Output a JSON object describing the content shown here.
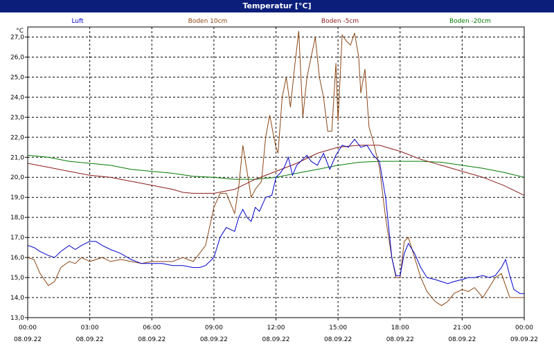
{
  "window": {
    "title": "Temperatur [°C]"
  },
  "colors": {
    "luft": "#0000cc",
    "boden10": "#8b4513",
    "bodenm5": "#8b1a1a",
    "bodenm20": "#007a00",
    "title_bg": "#0a1e7a"
  },
  "chart_data": {
    "type": "line",
    "title": "Temperatur [°C]",
    "ylabel": "°C",
    "ylim": [
      13.0,
      27.5
    ],
    "yticks": [
      "13,0",
      "14,0",
      "15,0",
      "16,0",
      "17,0",
      "18,0",
      "19,0",
      "20,0",
      "21,0",
      "22,0",
      "23,0",
      "24,0",
      "25,0",
      "26,0",
      "27,0"
    ],
    "xlim": [
      0,
      24
    ],
    "xticks": [
      {
        "x": 0,
        "time": "00:00",
        "date": "08.09.22"
      },
      {
        "x": 3,
        "time": "03:00",
        "date": "08.09.22"
      },
      {
        "x": 6,
        "time": "06:00",
        "date": "08.09.22"
      },
      {
        "x": 9,
        "time": "09:00",
        "date": "08.09.22"
      },
      {
        "x": 12,
        "time": "12:00",
        "date": "08.09.22"
      },
      {
        "x": 15,
        "time": "15:00",
        "date": "08.09.22"
      },
      {
        "x": 18,
        "time": "18:00",
        "date": "08.09.22"
      },
      {
        "x": 21,
        "time": "21:00",
        "date": "08.09.22"
      },
      {
        "x": 24,
        "time": "00:00",
        "date": "09.09.22"
      }
    ],
    "grid": true,
    "legend_position": "top",
    "series": [
      {
        "name": "Luft",
        "color_key": "luft",
        "points": [
          [
            0,
            16.6
          ],
          [
            0.3,
            16.5
          ],
          [
            0.6,
            16.3
          ],
          [
            1,
            16.1
          ],
          [
            1.3,
            16.0
          ],
          [
            1.6,
            16.3
          ],
          [
            2,
            16.6
          ],
          [
            2.3,
            16.4
          ],
          [
            2.6,
            16.6
          ],
          [
            3,
            16.8
          ],
          [
            3.3,
            16.8
          ],
          [
            3.6,
            16.6
          ],
          [
            4,
            16.4
          ],
          [
            4.5,
            16.2
          ],
          [
            5,
            15.9
          ],
          [
            5.5,
            15.7
          ],
          [
            6,
            15.7
          ],
          [
            6.5,
            15.7
          ],
          [
            7,
            15.6
          ],
          [
            7.5,
            15.6
          ],
          [
            8,
            15.5
          ],
          [
            8.3,
            15.5
          ],
          [
            8.6,
            15.6
          ],
          [
            9,
            16.0
          ],
          [
            9.3,
            17.0
          ],
          [
            9.6,
            17.5
          ],
          [
            10,
            17.3
          ],
          [
            10.2,
            18.0
          ],
          [
            10.4,
            18.4
          ],
          [
            10.6,
            18.0
          ],
          [
            10.8,
            17.8
          ],
          [
            11,
            18.5
          ],
          [
            11.2,
            18.3
          ],
          [
            11.5,
            19.0
          ],
          [
            11.8,
            19.1
          ],
          [
            12,
            20.0
          ],
          [
            12.2,
            20.2
          ],
          [
            12.4,
            20.5
          ],
          [
            12.6,
            21.0
          ],
          [
            12.8,
            20.1
          ],
          [
            13,
            20.6
          ],
          [
            13.3,
            20.9
          ],
          [
            13.5,
            21.1
          ],
          [
            13.7,
            20.8
          ],
          [
            14,
            20.6
          ],
          [
            14.3,
            21.2
          ],
          [
            14.6,
            20.4
          ],
          [
            14.9,
            21.1
          ],
          [
            15.2,
            21.6
          ],
          [
            15.5,
            21.5
          ],
          [
            15.8,
            21.9
          ],
          [
            16.1,
            21.5
          ],
          [
            16.4,
            21.6
          ],
          [
            16.7,
            21.1
          ],
          [
            17,
            20.8
          ],
          [
            17.3,
            19.0
          ],
          [
            17.6,
            16.0
          ],
          [
            17.8,
            15.1
          ],
          [
            18,
            15.1
          ],
          [
            18.2,
            16.2
          ],
          [
            18.4,
            16.7
          ],
          [
            18.7,
            16.2
          ],
          [
            19,
            15.5
          ],
          [
            19.3,
            15.0
          ],
          [
            19.7,
            14.9
          ],
          [
            20,
            14.8
          ],
          [
            20.3,
            14.7
          ],
          [
            20.6,
            14.8
          ],
          [
            21,
            14.9
          ],
          [
            21.3,
            15.0
          ],
          [
            21.6,
            15.0
          ],
          [
            22,
            15.1
          ],
          [
            22.3,
            15.0
          ],
          [
            22.6,
            15.1
          ],
          [
            22.9,
            15.5
          ],
          [
            23.1,
            15.9
          ],
          [
            23.3,
            15.1
          ],
          [
            23.5,
            14.4
          ],
          [
            23.8,
            14.2
          ],
          [
            24,
            14.2
          ]
        ]
      },
      {
        "name": "Boden 10cm",
        "color_key": "boden10",
        "points": [
          [
            0,
            16.0
          ],
          [
            0.3,
            15.9
          ],
          [
            0.6,
            15.2
          ],
          [
            1,
            14.6
          ],
          [
            1.3,
            14.8
          ],
          [
            1.6,
            15.5
          ],
          [
            2,
            15.8
          ],
          [
            2.3,
            15.7
          ],
          [
            2.6,
            16.0
          ],
          [
            3,
            15.8
          ],
          [
            3.3,
            15.9
          ],
          [
            3.6,
            16.0
          ],
          [
            4,
            15.8
          ],
          [
            4.5,
            15.9
          ],
          [
            5,
            15.8
          ],
          [
            5.5,
            15.7
          ],
          [
            6,
            15.8
          ],
          [
            6.5,
            15.8
          ],
          [
            7,
            15.8
          ],
          [
            7.5,
            16.0
          ],
          [
            8,
            15.8
          ],
          [
            8.3,
            16.2
          ],
          [
            8.6,
            16.6
          ],
          [
            9,
            18.5
          ],
          [
            9.3,
            19.2
          ],
          [
            9.6,
            19.2
          ],
          [
            10,
            18.2
          ],
          [
            10.2,
            19.5
          ],
          [
            10.4,
            21.6
          ],
          [
            10.6,
            20.3
          ],
          [
            10.8,
            19.0
          ],
          [
            11,
            19.4
          ],
          [
            11.3,
            19.8
          ],
          [
            11.5,
            22.0
          ],
          [
            11.7,
            23.1
          ],
          [
            11.9,
            22.0
          ],
          [
            12,
            21.5
          ],
          [
            12.1,
            21.2
          ],
          [
            12.3,
            24.0
          ],
          [
            12.5,
            25.0
          ],
          [
            12.7,
            23.5
          ],
          [
            12.9,
            25.5
          ],
          [
            13.1,
            27.3
          ],
          [
            13.3,
            23.0
          ],
          [
            13.5,
            25.0
          ],
          [
            13.7,
            26.0
          ],
          [
            13.9,
            27.0
          ],
          [
            14.1,
            25.0
          ],
          [
            14.3,
            24.0
          ],
          [
            14.5,
            22.3
          ],
          [
            14.7,
            22.3
          ],
          [
            14.9,
            25.7
          ],
          [
            15.0,
            22.8
          ],
          [
            15.2,
            27.1
          ],
          [
            15.4,
            26.8
          ],
          [
            15.6,
            26.6
          ],
          [
            15.8,
            27.2
          ],
          [
            16.0,
            26.0
          ],
          [
            16.1,
            24.2
          ],
          [
            16.3,
            25.4
          ],
          [
            16.5,
            22.5
          ],
          [
            16.7,
            21.8
          ],
          [
            17,
            20.5
          ],
          [
            17.3,
            18.0
          ],
          [
            17.6,
            16.0
          ],
          [
            17.8,
            15.0
          ],
          [
            18,
            15.0
          ],
          [
            18.2,
            16.8
          ],
          [
            18.4,
            17.0
          ],
          [
            18.7,
            16.0
          ],
          [
            19,
            15.0
          ],
          [
            19.3,
            14.3
          ],
          [
            19.7,
            13.8
          ],
          [
            20,
            13.6
          ],
          [
            20.3,
            13.8
          ],
          [
            20.6,
            14.2
          ],
          [
            21,
            14.4
          ],
          [
            21.3,
            14.3
          ],
          [
            21.6,
            14.5
          ],
          [
            22,
            14.0
          ],
          [
            22.3,
            14.5
          ],
          [
            22.6,
            15.0
          ],
          [
            22.9,
            15.2
          ],
          [
            23.1,
            14.6
          ],
          [
            23.3,
            14.0
          ],
          [
            23.6,
            14.0
          ],
          [
            24,
            14.0
          ]
        ]
      },
      {
        "name": "Boden -5cm",
        "color_key": "bodenm5",
        "points": [
          [
            0,
            20.7
          ],
          [
            1,
            20.5
          ],
          [
            2,
            20.3
          ],
          [
            3,
            20.1
          ],
          [
            4,
            20.0
          ],
          [
            5,
            19.8
          ],
          [
            6,
            19.6
          ],
          [
            7,
            19.4
          ],
          [
            7.5,
            19.25
          ],
          [
            8,
            19.2
          ],
          [
            9,
            19.2
          ],
          [
            10,
            19.4
          ],
          [
            11,
            19.9
          ],
          [
            12,
            20.3
          ],
          [
            13,
            20.7
          ],
          [
            14,
            21.2
          ],
          [
            15,
            21.5
          ],
          [
            16,
            21.6
          ],
          [
            17,
            21.6
          ],
          [
            18,
            21.3
          ],
          [
            19,
            20.9
          ],
          [
            20,
            20.6
          ],
          [
            21,
            20.3
          ],
          [
            22,
            20.0
          ],
          [
            23,
            19.6
          ],
          [
            24,
            19.1
          ]
        ]
      },
      {
        "name": "Boden -20cm",
        "color_key": "bodenm20",
        "points": [
          [
            0,
            21.1
          ],
          [
            1,
            21.0
          ],
          [
            2,
            20.8
          ],
          [
            3,
            20.7
          ],
          [
            4,
            20.6
          ],
          [
            5,
            20.4
          ],
          [
            6,
            20.3
          ],
          [
            7,
            20.2
          ],
          [
            8,
            20.05
          ],
          [
            9,
            20.0
          ],
          [
            10,
            19.9
          ],
          [
            11,
            19.9
          ],
          [
            12,
            20.0
          ],
          [
            13,
            20.2
          ],
          [
            14,
            20.4
          ],
          [
            15,
            20.6
          ],
          [
            16,
            20.75
          ],
          [
            17,
            20.8
          ],
          [
            18,
            20.8
          ],
          [
            19,
            20.8
          ],
          [
            20,
            20.75
          ],
          [
            21,
            20.6
          ],
          [
            22,
            20.45
          ],
          [
            23,
            20.25
          ],
          [
            24,
            20.0
          ]
        ]
      }
    ]
  }
}
